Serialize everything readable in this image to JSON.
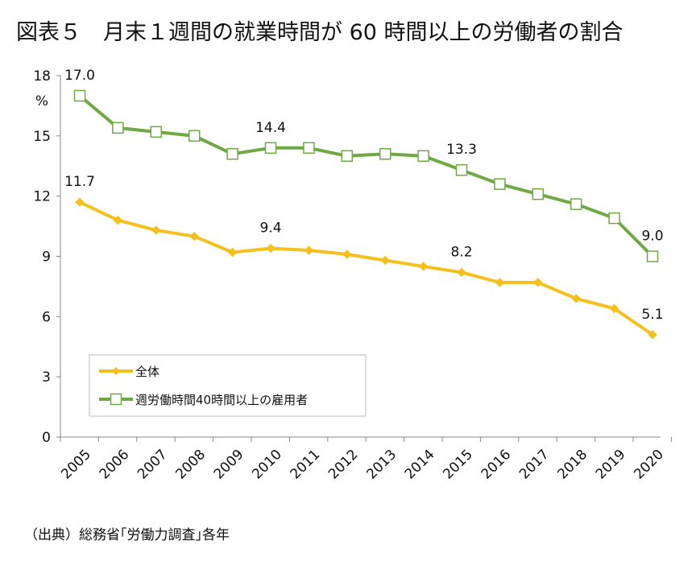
{
  "title": "図表５　月末１週間の就業時間が 60 時間以上の労働者の割合",
  "source": "（出典）総務省｢労働力調査｣各年",
  "chart_data": {
    "type": "line",
    "ylabel": "%",
    "ylim": [
      0,
      18
    ],
    "yticks": [
      "0",
      "3",
      "6",
      "9",
      "12",
      "15",
      "18"
    ],
    "yticks_values": [
      0,
      3,
      6,
      9,
      12,
      15,
      18
    ],
    "categories": [
      "2005",
      "2006",
      "2007",
      "2008",
      "2009",
      "2010",
      "2011",
      "2012",
      "2013",
      "2014",
      "2015",
      "2016",
      "2017",
      "2018",
      "2019",
      "2020"
    ],
    "legend_position": "bottom-left",
    "grid": false,
    "series": [
      {
        "name": "全体",
        "color": "#F5C01B",
        "marker": "diamond",
        "values": [
          11.7,
          10.8,
          10.3,
          10.0,
          9.2,
          9.4,
          9.3,
          9.1,
          8.8,
          8.5,
          8.2,
          7.7,
          7.7,
          6.9,
          6.4,
          5.1
        ],
        "data_labels": [
          {
            "index": 0,
            "text": "11.7"
          },
          {
            "index": 5,
            "text": "9.4"
          },
          {
            "index": 10,
            "text": "8.2"
          },
          {
            "index": 15,
            "text": "5.1"
          }
        ]
      },
      {
        "name": "週労働時間40時間以上の雇用者",
        "color": "#70A844",
        "marker": "square-open",
        "values": [
          17.0,
          15.4,
          15.2,
          15.0,
          14.1,
          14.4,
          14.4,
          14.0,
          14.1,
          14.0,
          13.3,
          12.6,
          12.1,
          11.6,
          10.9,
          9.0
        ],
        "data_labels": [
          {
            "index": 0,
            "text": "17.0"
          },
          {
            "index": 5,
            "text": "14.4"
          },
          {
            "index": 10,
            "text": "13.3"
          },
          {
            "index": 15,
            "text": "9.0"
          }
        ]
      }
    ]
  }
}
